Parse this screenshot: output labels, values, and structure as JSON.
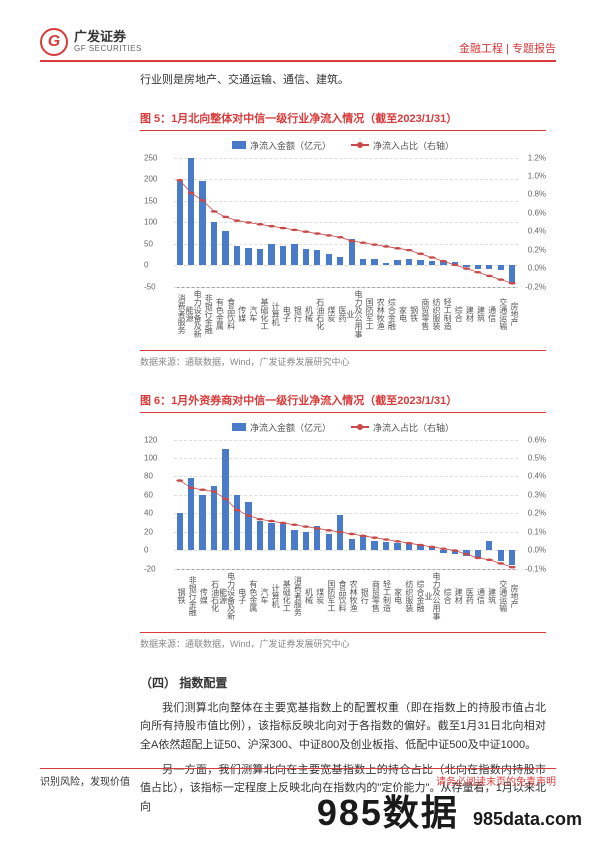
{
  "header": {
    "logo_cn": "广发证券",
    "logo_en": "GF SECURITIES",
    "right": "金融工程 | 专题报告"
  },
  "lead": "行业则是房地产、交通运输、通信、建筑。",
  "chart1": {
    "title": "图 5：1月北向整体对中信一级行业净流入情况（截至2023/1/31）",
    "legend_bar": "净流入金额（亿元）",
    "legend_line": "净流入占比（右轴）",
    "source": "数据来源：通联数据，Wind，广发证券发展研究中心",
    "y_min": -50,
    "y_max": 250,
    "y_step": 50,
    "y2_min": -0.2,
    "y2_max": 1.2,
    "y2_step": 0.2,
    "bar_color": "#4a7bc8",
    "line_color": "#c84a4a",
    "grid_color": "#dddddd",
    "categories": [
      "消费者服务",
      "电力设备及新能源",
      "非银行金融",
      "有色金属",
      "食品饮料",
      "传媒",
      "汽车",
      "基础化工",
      "计算机",
      "电子",
      "银行",
      "机械",
      "石油石化",
      "煤炭",
      "医药",
      "电力及公用事业",
      "国防军工",
      "农林牧渔",
      "综合金融",
      "家电",
      "钢铁",
      "商贸零售",
      "纺织服装",
      "轻工制造",
      "综合",
      "建材",
      "建筑",
      "通信",
      "交通运输",
      "房地产"
    ],
    "bar_values": [
      195,
      250,
      195,
      100,
      80,
      45,
      40,
      38,
      50,
      45,
      48,
      38,
      35,
      25,
      20,
      60,
      15,
      14,
      5,
      12,
      15,
      11,
      10,
      9,
      8,
      -5,
      -8,
      -10,
      -12,
      -45
    ],
    "line_values": [
      0.96,
      0.82,
      0.74,
      0.62,
      0.56,
      0.52,
      0.5,
      0.48,
      0.46,
      0.44,
      0.42,
      0.4,
      0.38,
      0.36,
      0.34,
      0.3,
      0.28,
      0.26,
      0.24,
      0.22,
      0.2,
      0.16,
      0.12,
      0.08,
      0.04,
      0.0,
      -0.04,
      -0.08,
      -0.12,
      -0.16
    ]
  },
  "chart2": {
    "title": "图 6：1月外资券商对中信一级行业净流入情况（截至2023/1/31）",
    "legend_bar": "净流入金额（亿元）",
    "legend_line": "净流入占比（右轴）",
    "source": "数据来源：通联数据，Wind，广发证券发展研究中心",
    "y_min": -20,
    "y_max": 120,
    "y_step": 20,
    "y2_min": -0.1,
    "y2_max": 0.6,
    "y2_step": 0.1,
    "bar_color": "#4a7bc8",
    "line_color": "#c84a4a",
    "grid_color": "#dddddd",
    "categories": [
      "钢铁",
      "非银行金融",
      "传媒",
      "石油石化",
      "电力设备及新能源",
      "电子",
      "有色金属",
      "汽车",
      "计算机",
      "基础化工",
      "消费者服务",
      "机械",
      "煤炭",
      "国防军工",
      "食品饮料",
      "农林牧渔",
      "银行",
      "商贸零售",
      "轻工制造",
      "家电",
      "纺织服装",
      "综合金融",
      "电力及公用事业",
      "综合",
      "建材",
      "医药",
      "通信",
      "建筑",
      "交通运输",
      "房地产"
    ],
    "bar_values": [
      40,
      78,
      60,
      70,
      110,
      60,
      52,
      32,
      30,
      28,
      22,
      20,
      26,
      18,
      38,
      12,
      16,
      10,
      9,
      8,
      7,
      6,
      5,
      -3,
      -4,
      -6,
      -8,
      10,
      -12,
      -16
    ],
    "line_values": [
      0.38,
      0.34,
      0.33,
      0.32,
      0.28,
      0.22,
      0.19,
      0.17,
      0.16,
      0.15,
      0.14,
      0.13,
      0.12,
      0.11,
      0.1,
      0.09,
      0.08,
      0.07,
      0.06,
      0.05,
      0.04,
      0.03,
      0.02,
      0.01,
      0.0,
      -0.02,
      -0.04,
      -0.05,
      -0.07,
      -0.09
    ]
  },
  "section": {
    "heading": "（四） 指数配置",
    "p1": "我们测算北向整体在主要宽基指数上的配置权重（即在指数上的持股市值占北向所有持股市值比例），该指标反映北向对于各指数的偏好。截至1月31日北向相对全A依然超配上证50、沪深300、中证800及创业板指、低配中证500及中证1000。",
    "p2": "另一方面，我们测算北向在主要宽基指数上的持仓占比（北向在指数内持股市值占比），该指标一定程度上反映北向在指数内的\"定价能力\"。从存量看，1月以来北向"
  },
  "footer": {
    "left": "识别风险，发现价值",
    "right": "请务必阅读末页的免责声明"
  },
  "watermark": {
    "big": "985数据",
    "small": "985data.com"
  }
}
